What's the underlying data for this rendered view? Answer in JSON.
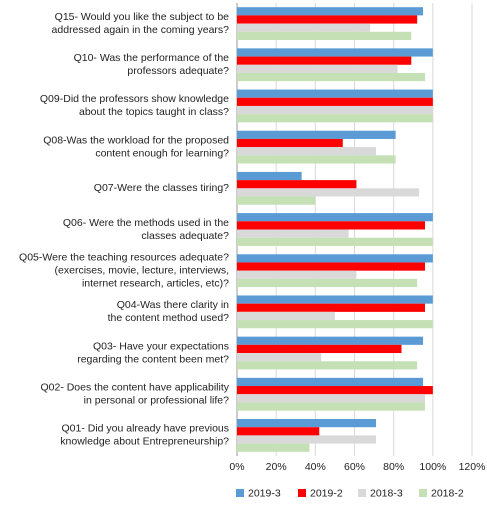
{
  "chart_data": {
    "type": "hbar",
    "categories": [
      [
        "Q15- Would you like the subject to be",
        "addressed again in the coming years?"
      ],
      [
        "Q10- Was the performance of the",
        "professors adequate?"
      ],
      [
        "Q09-Did the professors show knowledge",
        "about the topics taught in class?"
      ],
      [
        "Q08-Was the workload for the proposed",
        "content enough for learning?"
      ],
      [
        "Q07-Were the classes tiring?"
      ],
      [
        "Q06- Were the methods used in the",
        "classes adequate?"
      ],
      [
        "Q05-Were the teaching resources adequate?",
        "(exercises, movie, lecture, interviews,",
        "internet research, articles, etc)?"
      ],
      [
        "Q04-Was there clarity in",
        "the content method used?"
      ],
      [
        "Q03- Have your expectations",
        "regarding the content been met?"
      ],
      [
        "Q02- Does the content have applicability",
        "in personal or professional life?"
      ],
      [
        "Q01- Did you already have previous",
        "knowledge about Entrepreneurship?"
      ]
    ],
    "series": [
      {
        "name": "2019-3",
        "color": "#5b9bd5",
        "values": [
          95,
          100,
          100,
          81,
          33,
          100,
          100,
          100,
          95,
          95,
          71
        ]
      },
      {
        "name": "2019-2",
        "color": "#ff0000",
        "values": [
          92,
          89,
          100,
          54,
          61,
          96,
          96,
          96,
          84,
          100,
          42
        ]
      },
      {
        "name": "2018-3",
        "color": "#d9d9d9",
        "values": [
          68,
          82,
          100,
          71,
          93,
          57,
          61,
          50,
          43,
          96,
          71
        ]
      },
      {
        "name": "2018-2",
        "color": "#c5e0b4",
        "values": [
          89,
          96,
          100,
          81,
          40,
          100,
          92,
          100,
          92,
          96,
          37
        ]
      }
    ],
    "xlim": [
      0,
      120
    ],
    "xticks": [
      {
        "value": 0,
        "label": "0%"
      },
      {
        "value": 20,
        "label": "20%"
      },
      {
        "value": 40,
        "label": "40%"
      },
      {
        "value": 60,
        "label": "60%"
      },
      {
        "value": 80,
        "label": "80%"
      },
      {
        "value": 100,
        "label": "100%"
      },
      {
        "value": 120,
        "label": "120%"
      }
    ],
    "grid": true,
    "legend": "bottom"
  }
}
